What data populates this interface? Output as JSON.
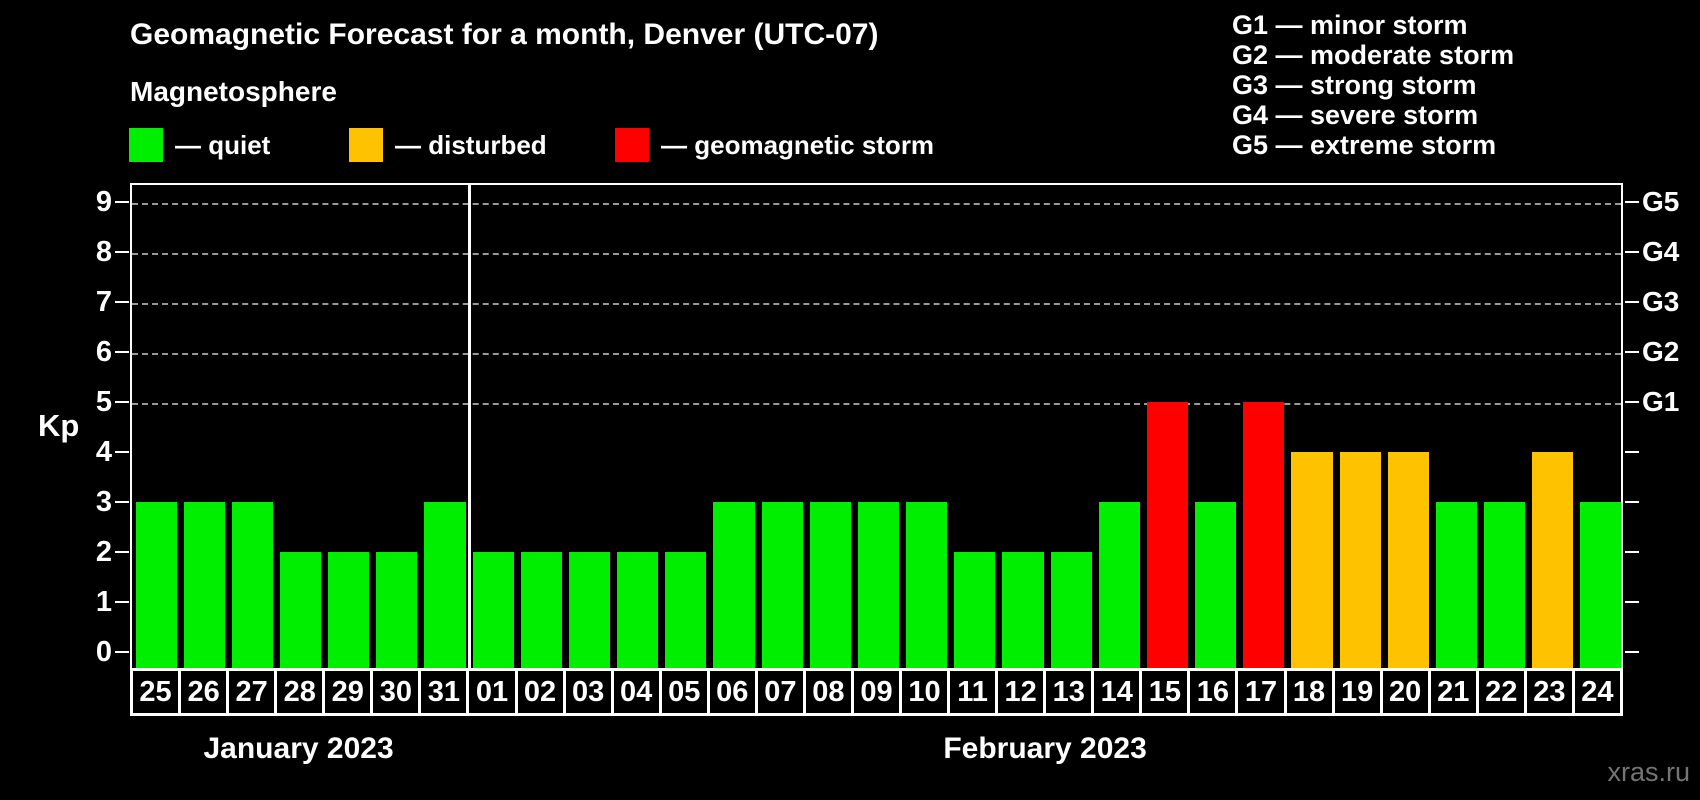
{
  "title": "Geomagnetic Forecast for a month, Denver (UTC-07)",
  "subtitle": "Magnetosphere",
  "status_legend": [
    {
      "name": "quiet",
      "label": "— quiet",
      "color": "#00ee00"
    },
    {
      "name": "disturbed",
      "label": "— disturbed",
      "color": "#ffc200"
    },
    {
      "name": "storm",
      "label": "— geomagnetic storm",
      "color": "#ff0000"
    }
  ],
  "g_scale_legend": [
    "G1 — minor storm",
    "G2 — moderate storm",
    "G3 — strong storm",
    "G4 — severe storm",
    "G5 — extreme storm"
  ],
  "watermark": "xras.ru",
  "chart_data": {
    "type": "bar",
    "title": "Geomagnetic Forecast for a month, Denver (UTC-07)",
    "ylabel": "Kp",
    "ylim": [
      0,
      9
    ],
    "y_ticks": [
      "0",
      "1",
      "2",
      "3",
      "4",
      "5",
      "6",
      "7",
      "8",
      "9"
    ],
    "gridlines_at_kp": [
      5,
      6,
      7,
      8,
      9
    ],
    "grid_style": "dashed horizontal lines only at Kp 5-9 (G-storm levels)",
    "right_axis_labels": [
      {
        "text": "G1",
        "kp": 5
      },
      {
        "text": "G2",
        "kp": 6
      },
      {
        "text": "G3",
        "kp": 7
      },
      {
        "text": "G4",
        "kp": 8
      },
      {
        "text": "G5",
        "kp": 9
      }
    ],
    "color_rules": {
      "quiet_max_kp": 3,
      "disturbed_max_kp": 4
    },
    "colors": {
      "quiet": "#00ee00",
      "disturbed": "#ffc200",
      "storm": "#ff0000"
    },
    "groups": [
      {
        "month_label": "January 2023",
        "categories": [
          "25",
          "26",
          "27",
          "28",
          "29",
          "30",
          "31"
        ],
        "values": [
          3,
          3,
          3,
          2,
          2,
          2,
          3
        ]
      },
      {
        "month_label": "February 2023",
        "categories": [
          "01",
          "02",
          "03",
          "04",
          "05",
          "06",
          "07",
          "08",
          "09",
          "10",
          "11",
          "12",
          "13",
          "14",
          "15",
          "16",
          "17",
          "18",
          "19",
          "20",
          "21",
          "22",
          "23",
          "24"
        ],
        "values": [
          2,
          2,
          2,
          2,
          2,
          3,
          3,
          3,
          3,
          3,
          2,
          2,
          2,
          3,
          5,
          3,
          5,
          4,
          4,
          4,
          3,
          3,
          4,
          3
        ]
      }
    ]
  }
}
